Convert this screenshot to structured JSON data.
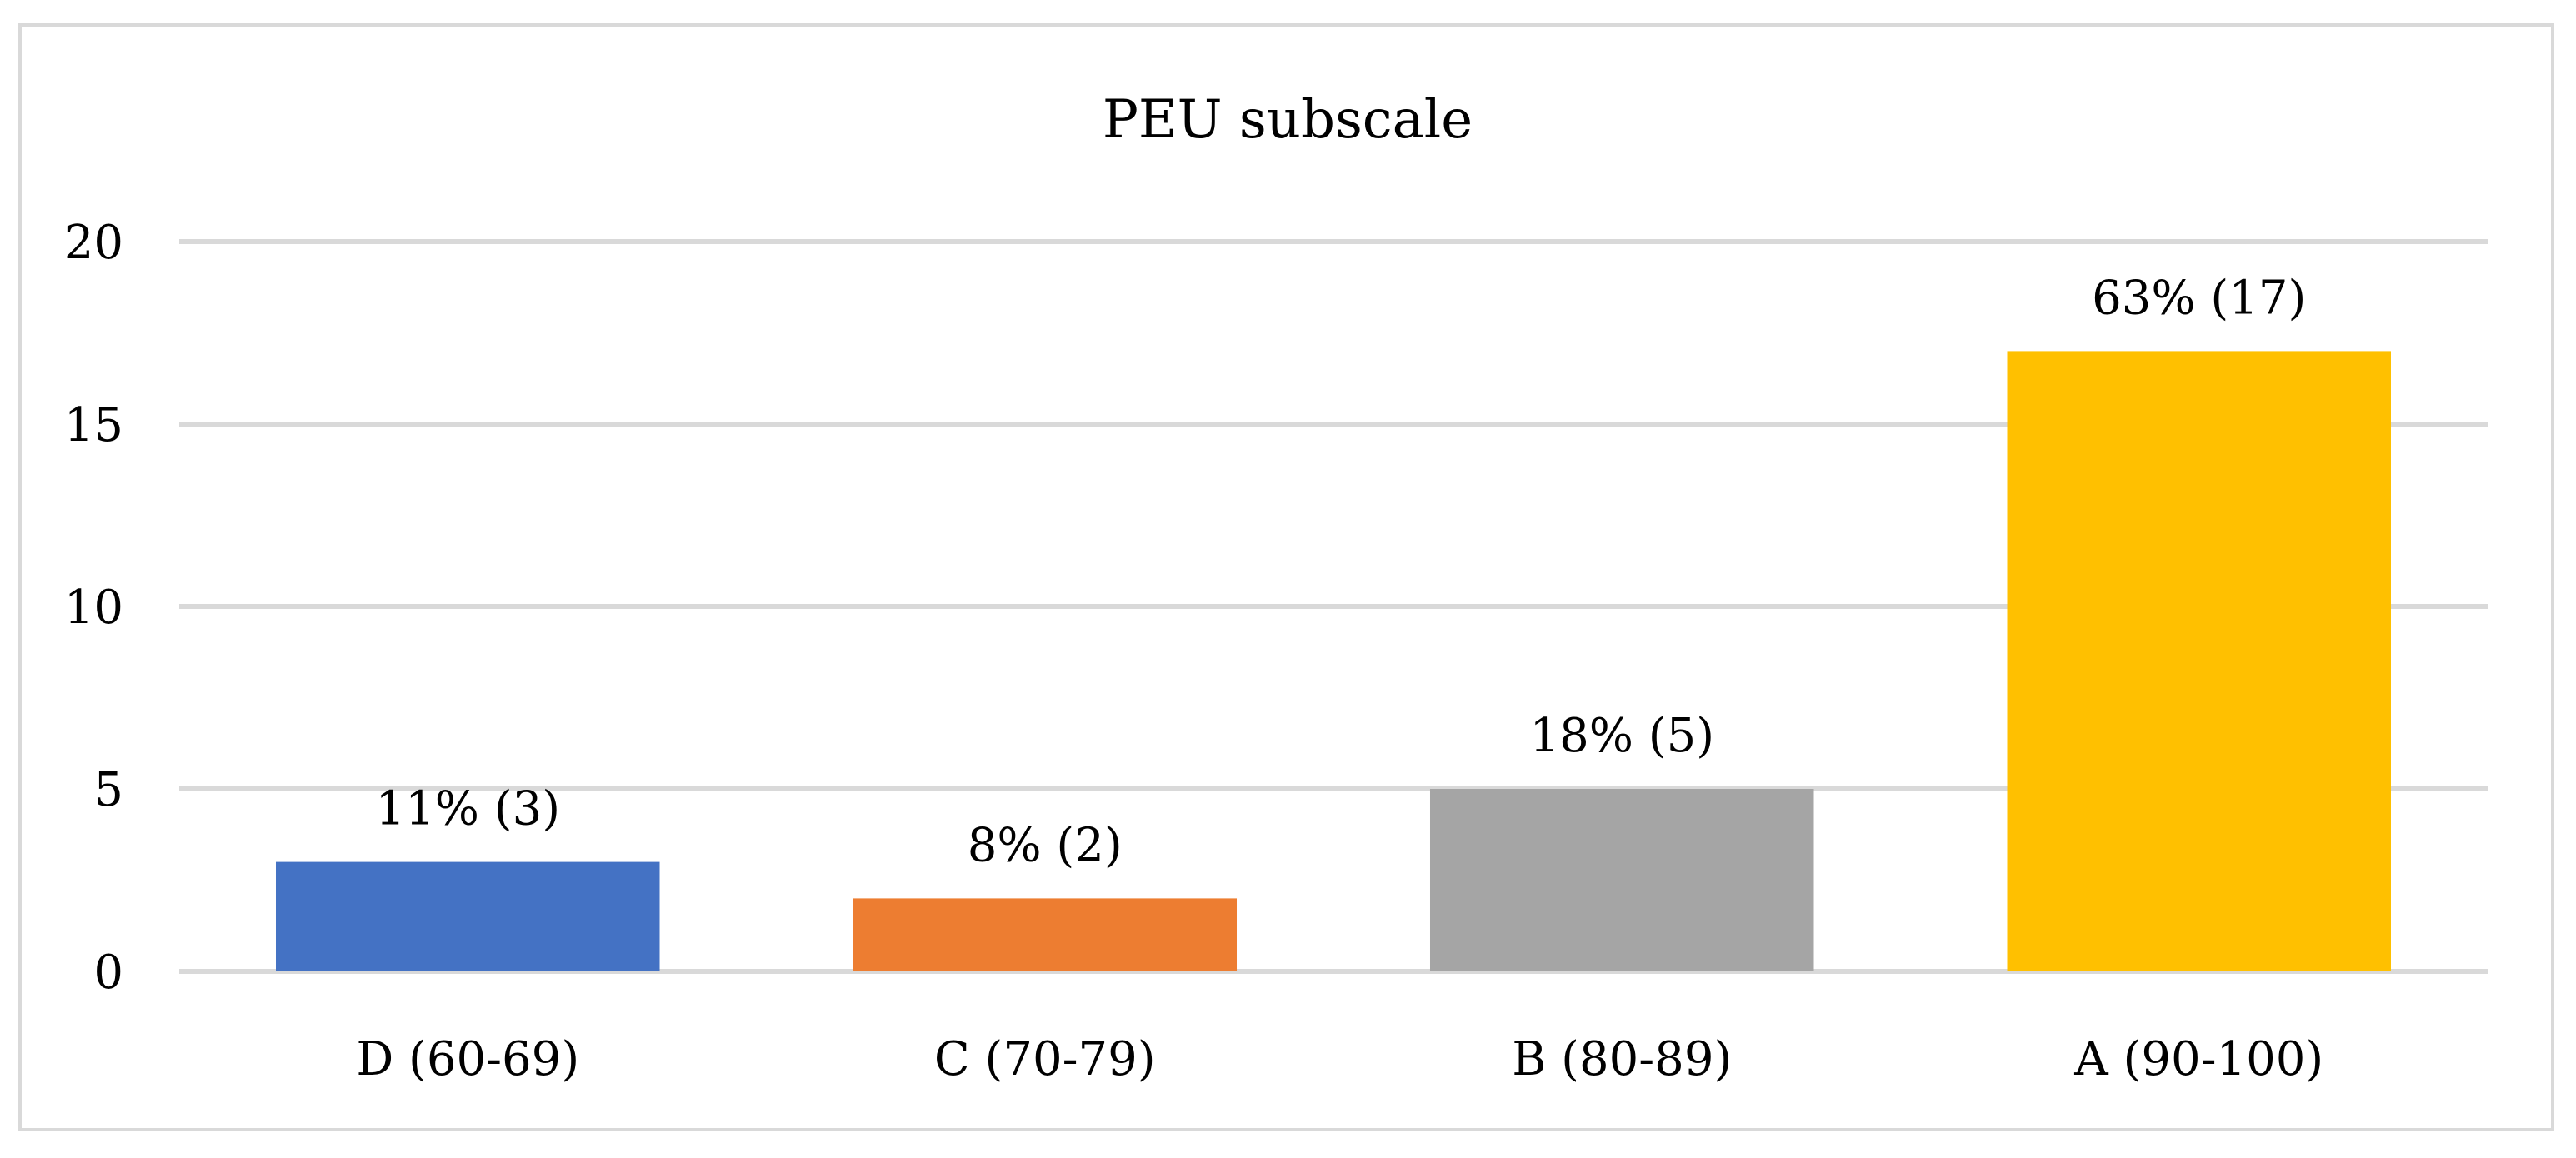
{
  "chart_data": {
    "type": "bar",
    "title": "PEU subscale",
    "xlabel": "",
    "ylabel": "",
    "categories": [
      "D (60-69)",
      "C (70-79)",
      "B (80-89)",
      "A (90-100)"
    ],
    "values": [
      3,
      2,
      5,
      17
    ],
    "data_labels": [
      "11% (3)",
      "8% (2)",
      "18% (5)",
      "63% (17)"
    ],
    "colors": [
      "#4472c4",
      "#ed7d31",
      "#a5a5a5",
      "#ffc000"
    ],
    "ylim": [
      0,
      20
    ],
    "yticks": [
      0,
      5,
      10,
      15,
      20
    ],
    "ytick_labels": [
      "0",
      "5",
      "10",
      "15",
      "20"
    ],
    "grid": true,
    "legend": "none"
  }
}
